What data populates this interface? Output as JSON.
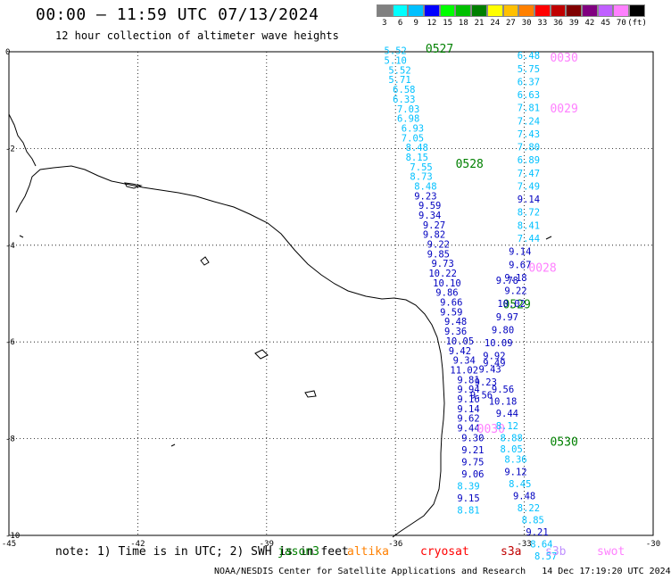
{
  "title": "00:00 – 11:59 UTC 07/13/2024",
  "subtitle": "12 hour collection of altimeter wave heights",
  "legend": {
    "colors": [
      "#808080",
      "#00ffff",
      "#00c0ff",
      "#0000ff",
      "#00ff00",
      "#00c000",
      "#008000",
      "#ffff00",
      "#ffc000",
      "#ff8000",
      "#ff0000",
      "#c00000",
      "#800000",
      "#800080",
      "#c060ff",
      "#ff80ff",
      "#000000"
    ],
    "labels": [
      "3",
      "6",
      "9",
      "12",
      "15",
      "18",
      "21",
      "24",
      "27",
      "30",
      "33",
      "36",
      "39",
      "42",
      "45",
      "70",
      "(ft)"
    ]
  },
  "map": {
    "lon_ticks": [
      "-45",
      "-42",
      "-39",
      "-36",
      "-33",
      "-30"
    ],
    "lat_ticks": [
      "0",
      "-2",
      "-4",
      "-6",
      "-8",
      "-10"
    ]
  },
  "tracks": [
    {
      "name": "jason3",
      "labels": [
        {
          "text": "0527",
          "lon": -35.3,
          "lat": -0.02,
          "color": "#008000"
        },
        {
          "text": "0528",
          "lon": -34.6,
          "lat": -2.4,
          "color": "#008000"
        },
        {
          "text": "0529",
          "lon": -33.5,
          "lat": -5.3,
          "color": "#008000"
        }
      ],
      "points": [
        {
          "lat": -0.05,
          "lon": -36.0,
          "v": "5.52",
          "c": "#00c0ff"
        },
        {
          "lat": -0.25,
          "lon": -36.0,
          "v": "5.10",
          "c": "#00c0ff"
        },
        {
          "lat": -0.45,
          "lon": -35.9,
          "v": "5.52",
          "c": "#00c0ff"
        },
        {
          "lat": -0.65,
          "lon": -35.9,
          "v": "5.71",
          "c": "#00c0ff"
        },
        {
          "lat": -0.85,
          "lon": -35.8,
          "v": "6.58",
          "c": "#00c0ff"
        },
        {
          "lat": -1.05,
          "lon": -35.8,
          "v": "6.33",
          "c": "#00c0ff"
        },
        {
          "lat": -1.25,
          "lon": -35.7,
          "v": "7.03",
          "c": "#00c0ff"
        },
        {
          "lat": -1.45,
          "lon": -35.7,
          "v": "6.98",
          "c": "#00c0ff"
        },
        {
          "lat": -1.65,
          "lon": -35.6,
          "v": "6.93",
          "c": "#00c0ff"
        },
        {
          "lat": -1.85,
          "lon": -35.6,
          "v": "7.05",
          "c": "#00c0ff"
        },
        {
          "lat": -2.05,
          "lon": -35.5,
          "v": "8.48",
          "c": "#00c0ff"
        },
        {
          "lat": -2.25,
          "lon": -35.5,
          "v": "8.15",
          "c": "#00c0ff"
        },
        {
          "lat": -2.45,
          "lon": -35.4,
          "v": "7.55",
          "c": "#00c0ff"
        },
        {
          "lat": -2.65,
          "lon": -35.4,
          "v": "8.73",
          "c": "#00c0ff"
        },
        {
          "lat": -2.85,
          "lon": -35.3,
          "v": "8.48",
          "c": "#00c0ff"
        },
        {
          "lat": -3.05,
          "lon": -35.3,
          "v": "9.23",
          "c": "#0000c0"
        },
        {
          "lat": -3.25,
          "lon": -35.2,
          "v": "9.59",
          "c": "#0000c0"
        },
        {
          "lat": -3.45,
          "lon": -35.2,
          "v": "9.34",
          "c": "#0000c0"
        },
        {
          "lat": -3.65,
          "lon": -35.1,
          "v": "9.27",
          "c": "#0000c0"
        },
        {
          "lat": -3.85,
          "lon": -35.1,
          "v": "9.82",
          "c": "#0000c0"
        },
        {
          "lat": -4.05,
          "lon": -35.0,
          "v": "9.22",
          "c": "#0000c0"
        },
        {
          "lat": -4.25,
          "lon": -35.0,
          "v": "9.85",
          "c": "#0000c0"
        },
        {
          "lat": -4.45,
          "lon": -34.9,
          "v": "9.73",
          "c": "#0000c0"
        },
        {
          "lat": -4.65,
          "lon": -34.9,
          "v": "10.22",
          "c": "#0000c0"
        },
        {
          "lat": -4.85,
          "lon": -34.8,
          "v": "10.10",
          "c": "#0000c0"
        },
        {
          "lat": -5.05,
          "lon": -34.8,
          "v": "9.86",
          "c": "#0000c0"
        },
        {
          "lat": -5.25,
          "lon": -34.7,
          "v": "9.66",
          "c": "#0000c0"
        },
        {
          "lat": -5.45,
          "lon": -34.7,
          "v": "9.59",
          "c": "#0000c0"
        },
        {
          "lat": -5.65,
          "lon": -34.6,
          "v": "9.48",
          "c": "#0000c0"
        },
        {
          "lat": -5.85,
          "lon": -34.6,
          "v": "9.36",
          "c": "#0000c0"
        },
        {
          "lat": -6.05,
          "lon": -34.5,
          "v": "10.05",
          "c": "#0000c0"
        },
        {
          "lat": -6.25,
          "lon": -34.5,
          "v": "9.42",
          "c": "#0000c0"
        },
        {
          "lat": -6.45,
          "lon": -34.4,
          "v": "9.34",
          "c": "#0000c0"
        },
        {
          "lat": -6.65,
          "lon": -34.4,
          "v": "11.02",
          "c": "#0000c0"
        },
        {
          "lat": -6.85,
          "lon": -34.3,
          "v": "9.81",
          "c": "#0000c0"
        },
        {
          "lat": -7.05,
          "lon": -34.3,
          "v": "9.94",
          "c": "#0000c0"
        },
        {
          "lat": -7.25,
          "lon": -34.3,
          "v": "9.16",
          "c": "#0000c0"
        },
        {
          "lat": -7.45,
          "lon": -34.3,
          "v": "9.14",
          "c": "#0000c0"
        },
        {
          "lat": -7.65,
          "lon": -34.3,
          "v": "9.62",
          "c": "#0000c0"
        },
        {
          "lat": -7.85,
          "lon": -34.3,
          "v": "9.44",
          "c": "#0000c0"
        },
        {
          "lat": -8.05,
          "lon": -34.2,
          "v": "9.30",
          "c": "#0000c0"
        },
        {
          "lat": -8.3,
          "lon": -34.2,
          "v": "9.21",
          "c": "#0000c0"
        },
        {
          "lat": -8.55,
          "lon": -34.2,
          "v": "9.75",
          "c": "#0000c0"
        },
        {
          "lat": -8.8,
          "lon": -34.2,
          "v": "9.06",
          "c": "#0000c0"
        },
        {
          "lat": -9.05,
          "lon": -34.3,
          "v": "8.39",
          "c": "#00c0ff"
        },
        {
          "lat": -9.3,
          "lon": -34.3,
          "v": "9.15",
          "c": "#0000c0"
        },
        {
          "lat": -9.55,
          "lon": -34.3,
          "v": "8.81",
          "c": "#00c0ff"
        }
      ]
    },
    {
      "name": "swot",
      "labels": [
        {
          "text": "0030",
          "lon": -32.4,
          "lat": -0.2,
          "color": "#ff80ff"
        },
        {
          "text": "0029",
          "lon": -32.4,
          "lat": -1.25,
          "color": "#ff80ff"
        },
        {
          "text": "0028",
          "lon": -32.9,
          "lat": -4.55,
          "color": "#ff80ff"
        },
        {
          "text": "0030",
          "lon": -34.1,
          "lat": -7.88,
          "color": "#ff80ff"
        }
      ],
      "points": [
        {
          "lat": -0.15,
          "lon": -32.9,
          "v": "6.48",
          "c": "#00c0ff"
        },
        {
          "lat": -0.42,
          "lon": -32.9,
          "v": "5.75",
          "c": "#00c0ff"
        },
        {
          "lat": -0.69,
          "lon": -32.9,
          "v": "6.37",
          "c": "#00c0ff"
        },
        {
          "lat": -0.96,
          "lon": -32.9,
          "v": "6.63",
          "c": "#00c0ff"
        },
        {
          "lat": -1.23,
          "lon": -32.9,
          "v": "7.81",
          "c": "#00c0ff"
        },
        {
          "lat": -1.5,
          "lon": -32.9,
          "v": "7.24",
          "c": "#00c0ff"
        },
        {
          "lat": -1.77,
          "lon": -32.9,
          "v": "7.43",
          "c": "#00c0ff"
        },
        {
          "lat": -2.04,
          "lon": -32.9,
          "v": "7.80",
          "c": "#00c0ff"
        },
        {
          "lat": -2.31,
          "lon": -32.9,
          "v": "6.89",
          "c": "#00c0ff"
        },
        {
          "lat": -2.58,
          "lon": -32.9,
          "v": "7.47",
          "c": "#00c0ff"
        },
        {
          "lat": -2.85,
          "lon": -32.9,
          "v": "7.49",
          "c": "#00c0ff"
        },
        {
          "lat": -3.12,
          "lon": -32.9,
          "v": "9.14",
          "c": "#0000c0"
        },
        {
          "lat": -3.39,
          "lon": -32.9,
          "v": "8.72",
          "c": "#00c0ff"
        },
        {
          "lat": -3.66,
          "lon": -32.9,
          "v": "8.41",
          "c": "#00c0ff"
        },
        {
          "lat": -3.93,
          "lon": -32.9,
          "v": "7.44",
          "c": "#00c0ff"
        },
        {
          "lat": -4.2,
          "lon": -33.1,
          "v": "9.14",
          "c": "#0000c0"
        },
        {
          "lat": -4.47,
          "lon": -33.1,
          "v": "9.67",
          "c": "#0000c0"
        },
        {
          "lat": -4.74,
          "lon": -33.2,
          "v": "9.18",
          "c": "#0000c0"
        },
        {
          "lat": -5.01,
          "lon": -33.2,
          "v": "9.22",
          "c": "#0000c0"
        },
        {
          "lat": -5.28,
          "lon": -33.3,
          "v": "10.02",
          "c": "#0000c0"
        },
        {
          "lat": -5.55,
          "lon": -33.4,
          "v": "9.97",
          "c": "#0000c0"
        },
        {
          "lat": -5.82,
          "lon": -33.5,
          "v": "9.80",
          "c": "#0000c0"
        },
        {
          "lat": -6.09,
          "lon": -33.6,
          "v": "10.09",
          "c": "#0000c0"
        },
        {
          "lat": -6.36,
          "lon": -33.7,
          "v": "9.92",
          "c": "#0000c0"
        },
        {
          "lat": -6.63,
          "lon": -33.8,
          "v": "9.43",
          "c": "#0000c0"
        },
        {
          "lat": -6.9,
          "lon": -33.9,
          "v": "9.23",
          "c": "#0000c0"
        },
        {
          "lat": -7.17,
          "lon": -34.0,
          "v": "9.56",
          "c": "#0000c0"
        }
      ]
    },
    {
      "name": "cryosat",
      "labels": [
        {
          "text": "0530",
          "lon": -32.4,
          "lat": -8.15,
          "color": "#008000"
        }
      ],
      "points": [
        {
          "lat": -4.8,
          "lon": -33.4,
          "v": "9.78",
          "c": "#0000c0"
        },
        {
          "lat": -6.5,
          "lon": -33.7,
          "v": "9.49",
          "c": "#0000c0"
        },
        {
          "lat": -7.05,
          "lon": -33.5,
          "v": "9.56",
          "c": "#0000c0"
        },
        {
          "lat": -7.3,
          "lon": -33.5,
          "v": "10.18",
          "c": "#0000c0"
        },
        {
          "lat": -7.55,
          "lon": -33.4,
          "v": "9.44",
          "c": "#0000c0"
        },
        {
          "lat": -7.8,
          "lon": -33.4,
          "v": "8.12",
          "c": "#00c0ff"
        },
        {
          "lat": -8.05,
          "lon": -33.3,
          "v": "8.88",
          "c": "#00c0ff"
        },
        {
          "lat": -8.28,
          "lon": -33.3,
          "v": "8.05",
          "c": "#00c0ff"
        },
        {
          "lat": -8.5,
          "lon": -33.2,
          "v": "8.36",
          "c": "#00c0ff"
        },
        {
          "lat": -8.75,
          "lon": -33.2,
          "v": "9.12",
          "c": "#0000c0"
        },
        {
          "lat": -9.0,
          "lon": -33.1,
          "v": "8.45",
          "c": "#00c0ff"
        },
        {
          "lat": -9.25,
          "lon": -33.0,
          "v": "9.48",
          "c": "#0000c0"
        },
        {
          "lat": -9.5,
          "lon": -32.9,
          "v": "8.22",
          "c": "#00c0ff"
        },
        {
          "lat": -9.75,
          "lon": -32.8,
          "v": "8.85",
          "c": "#00c0ff"
        },
        {
          "lat": -10.0,
          "lon": -32.7,
          "v": "9.21",
          "c": "#0000c0"
        },
        {
          "lat": -10.25,
          "lon": -32.6,
          "v": "8.64",
          "c": "#00c0ff"
        },
        {
          "lat": -10.5,
          "lon": -32.5,
          "v": "8.57",
          "c": "#00c0ff"
        }
      ]
    }
  ],
  "note": {
    "prefix": "note: 1) Time is in UTC; 2) SWH is in feet",
    "missions": [
      {
        "name": "jason3",
        "color": "#008000"
      },
      {
        "name": "altika",
        "color": "#ff8000"
      },
      {
        "name": "cryosat",
        "color": "#ff0000"
      },
      {
        "name": "s3a",
        "color": "#c00000"
      },
      {
        "name": "s3b",
        "color": "#c090ff"
      },
      {
        "name": "swot",
        "color": "#ff80ff"
      }
    ]
  },
  "footer": {
    "org": "NOAA/NESDIS Center for Satellite Applications and Research",
    "timestamp": "14 Dec 17:19:20 UTC 2024"
  }
}
